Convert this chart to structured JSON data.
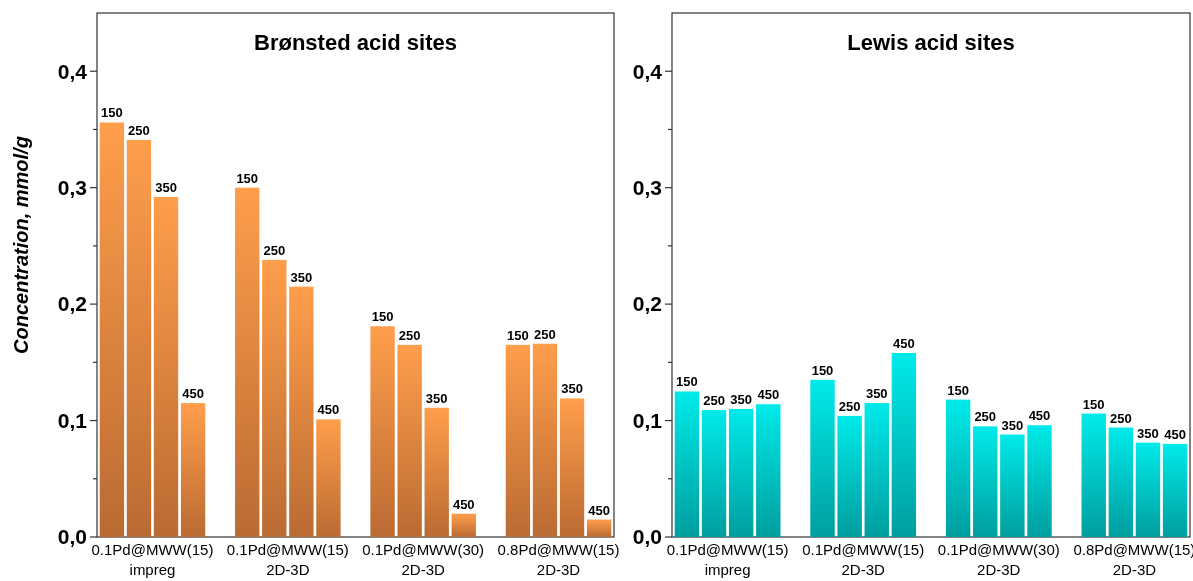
{
  "chart_data": [
    {
      "type": "bar",
      "title": "Brønsted acid sites",
      "ylabel": "Concentration, mmol/g",
      "categories": [
        "0.1Pd@MWW(15)\nimpreg",
        "0.1Pd@MWW(15)\n2D-3D",
        "0.1Pd@MWW(30)\n2D-3D",
        "0.8Pd@MWW(15)\n2D-3D"
      ],
      "series": [
        {
          "name": "150",
          "color": "#e6843f",
          "values": [
            0.356,
            0.3,
            0.181,
            0.165
          ]
        },
        {
          "name": "250",
          "color": "#e6843f",
          "values": [
            0.341,
            0.238,
            0.165,
            0.166
          ]
        },
        {
          "name": "350",
          "color": "#e6843f",
          "values": [
            0.292,
            0.215,
            0.111,
            0.119
          ]
        },
        {
          "name": "450",
          "color": "#e6843f",
          "values": [
            0.115,
            0.101,
            0.02,
            0.015
          ]
        }
      ],
      "ylim": [
        0,
        0.45
      ],
      "yticks": [
        {
          "value": 0,
          "label": "0,0"
        },
        {
          "value": 0.05,
          "label": null
        },
        {
          "value": 0.1,
          "label": "0,1"
        },
        {
          "value": 0.15,
          "label": null
        },
        {
          "value": 0.2,
          "label": "0,2"
        },
        {
          "value": 0.25,
          "label": null
        },
        {
          "value": 0.3,
          "label": "0,3"
        },
        {
          "value": 0.35,
          "label": null
        },
        {
          "value": 0.4,
          "label": "0,4"
        }
      ]
    },
    {
      "type": "bar",
      "title": "Lewis acid sites",
      "categories": [
        "0.1Pd@MWW(15)\nimpreg",
        "0.1Pd@MWW(15)\n2D-3D",
        "0.1Pd@MWW(30)\n2D-3D",
        "0.8Pd@MWW(15)\n2D-3D"
      ],
      "series": [
        {
          "name": "150",
          "color": "#00c4c4",
          "values": [
            0.125,
            0.135,
            0.118,
            0.106
          ]
        },
        {
          "name": "250",
          "color": "#00c4c4",
          "values": [
            0.109,
            0.104,
            0.095,
            0.094
          ]
        },
        {
          "name": "350",
          "color": "#00c4c4",
          "values": [
            0.11,
            0.115,
            0.088,
            0.081
          ]
        },
        {
          "name": "450",
          "color": "#00c4c4",
          "values": [
            0.114,
            0.158,
            0.096,
            0.08
          ]
        }
      ],
      "ylim": [
        0,
        0.45
      ],
      "yticks": [
        {
          "value": 0,
          "label": "0,0"
        },
        {
          "value": 0.05,
          "label": null
        },
        {
          "value": 0.1,
          "label": "0,1"
        },
        {
          "value": 0.15,
          "label": null
        },
        {
          "value": 0.2,
          "label": "0,2"
        },
        {
          "value": 0.25,
          "label": null
        },
        {
          "value": 0.3,
          "label": "0,3"
        },
        {
          "value": 0.35,
          "label": null
        },
        {
          "value": 0.4,
          "label": "0,4"
        }
      ]
    }
  ]
}
